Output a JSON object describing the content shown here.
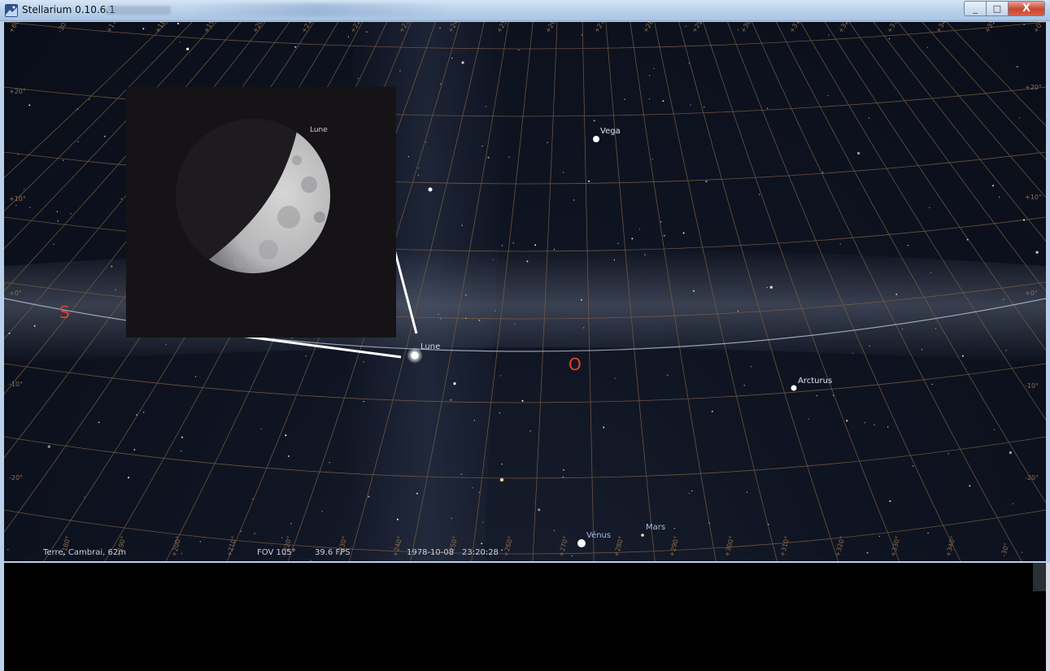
{
  "window": {
    "title": "Stellarium 0.10.6.1",
    "buttons": {
      "minimize": "_",
      "maximize": "□",
      "close": "X"
    }
  },
  "status": {
    "location": "Terre, Cambrai, 62m",
    "fov": "FOV 105°",
    "fps": "39.6 FPS",
    "date": "1978-10-08",
    "time": "23:20:28"
  },
  "cardinals": {
    "south": "S",
    "west": "O"
  },
  "objects": {
    "moon": "Lune",
    "vega": "Vega",
    "arcturus": "Arcturus",
    "venus": "Vénus",
    "mars": "Mars"
  },
  "inset": {
    "label": "Lune"
  },
  "altitude_labels": [
    "+20°",
    "+10°",
    "+0°",
    "-10°",
    "-20°",
    "+0°",
    "-10°",
    "-20°",
    "+10°",
    "+20°"
  ],
  "azimuth_labels_top": [
    "+60°",
    "-30°",
    "+170°",
    "+180°",
    "+190°",
    "+200°",
    "+210°",
    "+220°",
    "+230°",
    "+240°",
    "+250°",
    "+260°",
    "+270°",
    "+280°",
    "+290°",
    "+300°",
    "+310°",
    "+320°",
    "+330°",
    "+340°",
    "+350°",
    "+0°"
  ],
  "azimuth_labels_bottom": [
    "+180°",
    "+190°",
    "+200°",
    "+210°",
    "+220°",
    "+230°",
    "+240°",
    "+250°",
    "+260°",
    "+270°",
    "+280°",
    "+290°",
    "+300°",
    "+310°",
    "+320°",
    "+330°",
    "+340°",
    "-30°"
  ],
  "colors": {
    "grid": "#8a6a4a",
    "cardinal": "#e0452a",
    "horizon": "#a8b1c4",
    "star": "#ffffff",
    "planet_label": "#9fb4d8",
    "star_label": "#dfe6f1"
  }
}
